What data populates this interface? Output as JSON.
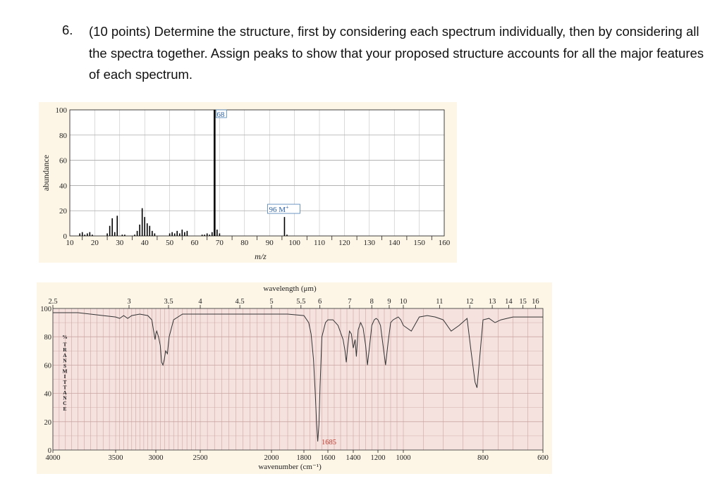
{
  "question": {
    "number": "6.",
    "text": "(10 points) Determine the structure, first by considering each spectrum individually, then by considering all the spectra together. Assign peaks to show that your proposed structure accounts for all the major features of each spectrum."
  },
  "chart_data": [
    {
      "type": "bar",
      "title": "",
      "xlabel": "m/z",
      "ylabel": "abundance",
      "xlim": [
        10,
        160
      ],
      "ylim": [
        0,
        100
      ],
      "xticks": [
        "10",
        "20",
        "30",
        "40",
        "50",
        "60",
        "70",
        "80",
        "90",
        "100",
        "110",
        "120",
        "130",
        "140",
        "150",
        "160"
      ],
      "yticks": [
        "0",
        "20",
        "40",
        "60",
        "80",
        "100"
      ],
      "grid": true,
      "annotations": [
        {
          "x": 68,
          "text": "68"
        },
        {
          "x": 96,
          "text": "96 M+"
        }
      ],
      "peaks": [
        {
          "x": 14,
          "y": 2
        },
        {
          "x": 15,
          "y": 3
        },
        {
          "x": 16,
          "y": 1
        },
        {
          "x": 17,
          "y": 2
        },
        {
          "x": 18,
          "y": 3
        },
        {
          "x": 19,
          "y": 1
        },
        {
          "x": 25,
          "y": 2
        },
        {
          "x": 26,
          "y": 8
        },
        {
          "x": 27,
          "y": 14
        },
        {
          "x": 28,
          "y": 3
        },
        {
          "x": 29,
          "y": 16
        },
        {
          "x": 31,
          "y": 1
        },
        {
          "x": 32,
          "y": 1
        },
        {
          "x": 36,
          "y": 1
        },
        {
          "x": 37,
          "y": 4
        },
        {
          "x": 38,
          "y": 9
        },
        {
          "x": 39,
          "y": 22
        },
        {
          "x": 40,
          "y": 15
        },
        {
          "x": 41,
          "y": 10
        },
        {
          "x": 42,
          "y": 8
        },
        {
          "x": 43,
          "y": 4
        },
        {
          "x": 44,
          "y": 2
        },
        {
          "x": 50,
          "y": 2
        },
        {
          "x": 51,
          "y": 3
        },
        {
          "x": 52,
          "y": 2
        },
        {
          "x": 53,
          "y": 4
        },
        {
          "x": 54,
          "y": 2
        },
        {
          "x": 55,
          "y": 5
        },
        {
          "x": 56,
          "y": 3
        },
        {
          "x": 57,
          "y": 4
        },
        {
          "x": 63,
          "y": 1
        },
        {
          "x": 64,
          "y": 1
        },
        {
          "x": 65,
          "y": 2
        },
        {
          "x": 66,
          "y": 1
        },
        {
          "x": 67,
          "y": 3
        },
        {
          "x": 68,
          "y": 100
        },
        {
          "x": 69,
          "y": 5
        },
        {
          "x": 70,
          "y": 2
        },
        {
          "x": 96,
          "y": 15
        },
        {
          "x": 97,
          "y": 1
        }
      ]
    },
    {
      "type": "line",
      "title": "",
      "xlabel": "wavenumber (cm⁻¹)",
      "ylabel": "% TRANSMITTANCE",
      "top_axis_label": "wavelength (μm)",
      "xlim": [
        4000,
        600
      ],
      "ylim": [
        0,
        100
      ],
      "xticks": [
        "4000",
        "3500",
        "3000",
        "2500",
        "2000",
        "1800",
        "1600",
        "1400",
        "1200",
        "1000",
        "800",
        "600"
      ],
      "yticks": [
        "0",
        "20",
        "40",
        "60",
        "80",
        "100"
      ],
      "top_ticks": [
        "2.5",
        "3",
        "3.5",
        "4",
        "4.5",
        "5",
        "5.5",
        "6",
        "7",
        "8",
        "9",
        "10",
        "11",
        "12",
        "13",
        "14",
        "15",
        "16"
      ],
      "grid": true,
      "annotations": [
        {
          "x": 1685,
          "text": "1685"
        }
      ],
      "series": [
        {
          "x": [
            4000,
            3900,
            3800,
            3700,
            3600,
            3500,
            3450,
            3400,
            3350,
            3300,
            3200,
            3100,
            3050,
            3030,
            3010,
            3000,
            2990,
            2970,
            2950,
            2935,
            2920,
            2905,
            2890,
            2870,
            2860,
            2850,
            2800,
            2700,
            2600,
            2500,
            2400,
            2300,
            2200,
            2100,
            2000,
            1900,
            1800,
            1760,
            1740,
            1720,
            1705,
            1695,
            1685,
            1675,
            1665,
            1650,
            1620,
            1600,
            1560,
            1520,
            1480,
            1465,
            1455,
            1445,
            1430,
            1415,
            1400,
            1385,
            1375,
            1360,
            1340,
            1320,
            1300,
            1285,
            1270,
            1250,
            1230,
            1215,
            1200,
            1180,
            1160,
            1140,
            1120,
            1100,
            1080,
            1060,
            1040,
            1020,
            1000,
            980,
            960,
            940,
            920,
            900,
            880,
            860,
            840,
            830,
            820,
            815,
            810,
            800,
            780,
            760,
            740,
            720,
            700,
            680,
            650,
            600
          ],
          "y": [
            97,
            97,
            97,
            96,
            95,
            94,
            93,
            95,
            93,
            95,
            96,
            95,
            92,
            85,
            78,
            82,
            84,
            80,
            74,
            62,
            60,
            64,
            70,
            68,
            74,
            80,
            92,
            96,
            96,
            96,
            96,
            96,
            96,
            96,
            96,
            96,
            95,
            90,
            82,
            64,
            40,
            20,
            6,
            18,
            45,
            80,
            90,
            92,
            92,
            88,
            78,
            70,
            62,
            72,
            84,
            82,
            72,
            78,
            66,
            85,
            90,
            86,
            74,
            60,
            72,
            88,
            92,
            93,
            92,
            88,
            74,
            60,
            76,
            90,
            92,
            93,
            94,
            92,
            88,
            84,
            94,
            95,
            94,
            92,
            84,
            88,
            93,
            70,
            48,
            44,
            60,
            92,
            93,
            90,
            92,
            93,
            94,
            94,
            94,
            94
          ]
        }
      ]
    }
  ]
}
